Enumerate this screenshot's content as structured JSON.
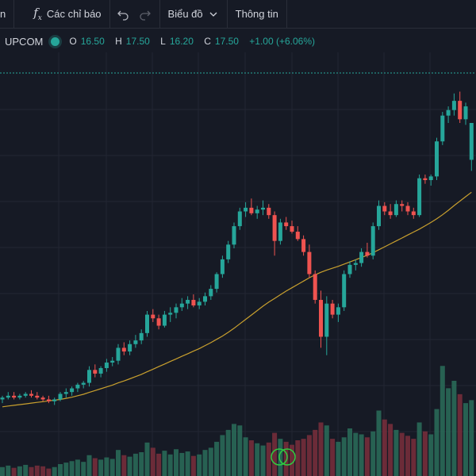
{
  "toolbar": {
    "cut_label": "n",
    "indicators_label": "Các chỉ báo",
    "chart_label": "Biểu đồ",
    "info_label": "Thông tin"
  },
  "legend": {
    "exchange": "UPCOM",
    "open_label": "O",
    "open": "16.50",
    "high_label": "H",
    "high": "17.50",
    "low_label": "L",
    "low": "16.20",
    "close_label": "C",
    "close": "17.50",
    "change": "+1.00 (+6.06%)"
  },
  "colors": {
    "up": "#26a69a",
    "down": "#ef5350",
    "ma": "#c9a02e",
    "grid": "#232632",
    "bg": "#161a25"
  },
  "chart_data": {
    "type": "candlestick",
    "candles": [
      [
        10.0,
        10.1,
        9.9,
        10.05
      ],
      [
        10.05,
        10.2,
        10.0,
        10.1
      ],
      [
        10.1,
        10.2,
        10.0,
        10.05
      ],
      [
        10.05,
        10.15,
        10.0,
        10.1
      ],
      [
        10.1,
        10.2,
        10.05,
        10.15
      ],
      [
        10.15,
        10.25,
        10.05,
        10.1
      ],
      [
        10.1,
        10.2,
        10.0,
        10.05
      ],
      [
        10.05,
        10.1,
        9.95,
        10.0
      ],
      [
        10.0,
        10.1,
        9.9,
        9.95
      ],
      [
        9.95,
        10.05,
        9.85,
        10.0
      ],
      [
        10.0,
        10.2,
        9.95,
        10.15
      ],
      [
        10.15,
        10.3,
        10.05,
        10.2
      ],
      [
        10.2,
        10.35,
        10.1,
        10.3
      ],
      [
        10.3,
        10.45,
        10.2,
        10.4
      ],
      [
        10.4,
        10.5,
        10.3,
        10.45
      ],
      [
        10.45,
        10.9,
        10.35,
        10.8
      ],
      [
        10.8,
        10.95,
        10.6,
        10.7
      ],
      [
        10.7,
        10.9,
        10.6,
        10.85
      ],
      [
        10.85,
        11.1,
        10.75,
        11.0
      ],
      [
        11.0,
        11.15,
        10.9,
        11.05
      ],
      [
        11.05,
        11.5,
        10.95,
        11.4
      ],
      [
        11.4,
        11.55,
        11.2,
        11.3
      ],
      [
        11.3,
        11.6,
        11.2,
        11.5
      ],
      [
        11.5,
        11.75,
        11.4,
        11.6
      ],
      [
        11.6,
        11.9,
        11.5,
        11.8
      ],
      [
        11.8,
        12.4,
        11.7,
        12.3
      ],
      [
        12.3,
        12.45,
        12.1,
        12.2
      ],
      [
        12.2,
        12.3,
        11.9,
        12.0
      ],
      [
        12.0,
        12.4,
        11.95,
        12.3
      ],
      [
        12.3,
        12.5,
        12.1,
        12.35
      ],
      [
        12.35,
        12.6,
        12.2,
        12.5
      ],
      [
        12.5,
        12.75,
        12.4,
        12.6
      ],
      [
        12.6,
        12.8,
        12.45,
        12.7
      ],
      [
        12.7,
        12.85,
        12.5,
        12.55
      ],
      [
        12.55,
        12.75,
        12.45,
        12.65
      ],
      [
        12.65,
        12.9,
        12.55,
        12.8
      ],
      [
        12.8,
        13.1,
        12.7,
        13.0
      ],
      [
        13.0,
        13.45,
        12.9,
        13.4
      ],
      [
        13.4,
        13.9,
        13.3,
        13.8
      ],
      [
        13.8,
        14.3,
        13.7,
        14.2
      ],
      [
        14.2,
        14.8,
        14.1,
        14.7
      ],
      [
        14.7,
        15.2,
        14.6,
        15.1
      ],
      [
        15.1,
        15.35,
        14.95,
        15.2
      ],
      [
        15.2,
        15.45,
        15.0,
        15.05
      ],
      [
        15.05,
        15.25,
        14.9,
        15.15
      ],
      [
        15.15,
        15.4,
        15.0,
        15.2
      ],
      [
        15.2,
        15.3,
        14.9,
        15.0
      ],
      [
        15.0,
        15.1,
        13.9,
        14.3
      ],
      [
        14.3,
        14.9,
        14.2,
        14.8
      ],
      [
        14.8,
        14.95,
        14.6,
        14.7
      ],
      [
        14.7,
        14.85,
        14.5,
        14.55
      ],
      [
        14.55,
        14.7,
        14.3,
        14.35
      ],
      [
        14.35,
        14.45,
        13.9,
        14.0
      ],
      [
        14.0,
        14.2,
        13.3,
        13.4
      ],
      [
        13.4,
        13.5,
        12.6,
        12.7
      ],
      [
        12.7,
        12.95,
        11.4,
        11.7
      ],
      [
        11.7,
        12.8,
        11.2,
        12.6
      ],
      [
        12.6,
        12.7,
        12.2,
        12.3
      ],
      [
        12.3,
        12.6,
        12.1,
        12.5
      ],
      [
        12.5,
        13.5,
        12.4,
        13.4
      ],
      [
        13.4,
        13.75,
        13.3,
        13.65
      ],
      [
        13.65,
        13.8,
        13.5,
        13.7
      ],
      [
        13.7,
        14.1,
        13.6,
        14.0
      ],
      [
        14.0,
        14.25,
        13.85,
        13.9
      ],
      [
        13.9,
        14.8,
        13.8,
        14.7
      ],
      [
        14.7,
        15.4,
        14.6,
        15.25
      ],
      [
        15.25,
        15.35,
        15.0,
        15.1
      ],
      [
        15.1,
        15.3,
        14.9,
        15.0
      ],
      [
        15.0,
        15.4,
        14.95,
        15.3
      ],
      [
        15.3,
        15.4,
        15.1,
        15.25
      ],
      [
        15.25,
        15.35,
        15.0,
        15.1
      ],
      [
        15.1,
        15.2,
        14.9,
        15.0
      ],
      [
        15.0,
        16.1,
        14.95,
        16.0
      ],
      [
        16.0,
        16.1,
        15.85,
        15.95
      ],
      [
        15.95,
        16.1,
        15.8,
        16.05
      ],
      [
        16.05,
        17.1,
        15.95,
        17.0
      ],
      [
        17.0,
        17.8,
        16.9,
        17.7
      ],
      [
        17.7,
        17.95,
        17.5,
        17.85
      ],
      [
        17.85,
        18.3,
        17.7,
        18.1
      ],
      [
        18.1,
        18.35,
        17.5,
        17.6
      ],
      [
        17.6,
        18.05,
        17.45,
        17.95
      ],
      [
        16.5,
        17.5,
        16.2,
        17.5
      ]
    ],
    "ma": [
      9.8,
      9.82,
      9.84,
      9.86,
      9.88,
      9.9,
      9.92,
      9.94,
      9.96,
      9.98,
      10.0,
      10.03,
      10.06,
      10.1,
      10.14,
      10.19,
      10.24,
      10.29,
      10.34,
      10.39,
      10.45,
      10.5,
      10.56,
      10.62,
      10.68,
      10.75,
      10.82,
      10.89,
      10.96,
      11.03,
      11.1,
      11.17,
      11.24,
      11.31,
      11.38,
      11.46,
      11.54,
      11.63,
      11.72,
      11.82,
      11.93,
      12.05,
      12.17,
      12.29,
      12.41,
      12.53,
      12.64,
      12.74,
      12.84,
      12.94,
      13.03,
      13.12,
      13.21,
      13.3,
      13.38,
      13.45,
      13.51,
      13.56,
      13.61,
      13.67,
      13.73,
      13.79,
      13.85,
      13.91,
      13.98,
      14.06,
      14.14,
      14.22,
      14.3,
      14.38,
      14.46,
      14.54,
      14.62,
      14.71,
      14.8,
      14.9,
      15.01,
      15.13,
      15.26,
      15.38,
      15.5,
      15.62
    ],
    "volume": [
      12,
      14,
      11,
      13,
      15,
      12,
      14,
      13,
      10,
      12,
      16,
      18,
      20,
      22,
      19,
      28,
      24,
      22,
      25,
      23,
      35,
      28,
      26,
      30,
      32,
      45,
      38,
      30,
      34,
      29,
      36,
      31,
      33,
      27,
      29,
      35,
      38,
      46,
      55,
      62,
      70,
      68,
      52,
      48,
      44,
      41,
      45,
      58,
      50,
      46,
      42,
      48,
      50,
      55,
      62,
      72,
      68,
      50,
      46,
      52,
      64,
      58,
      56,
      52,
      60,
      88,
      76,
      70,
      62,
      58,
      54,
      50,
      72,
      60,
      56,
      90,
      148,
      118,
      128,
      110,
      98,
      102
    ]
  }
}
